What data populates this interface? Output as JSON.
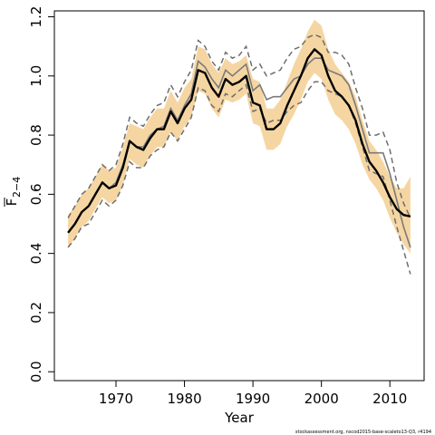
{
  "chart_data": {
    "type": "line",
    "xlabel": "Year",
    "ylabel_main": "F",
    "ylabel_sub": "2−4",
    "xlim": [
      1961,
      2015
    ],
    "ylim": [
      -0.03,
      1.22
    ],
    "x_ticks": [
      1970,
      1980,
      1990,
      2000,
      2010
    ],
    "x_tick_labels": [
      "1970",
      "1980",
      "1990",
      "2000",
      "2010"
    ],
    "y_ticks": [
      0.0,
      0.2,
      0.4,
      0.6,
      0.8,
      1.0,
      1.2
    ],
    "y_tick_labels": [
      "0.0",
      "0.2",
      "0.4",
      "0.6",
      "0.8",
      "1.0",
      "1.2"
    ],
    "footnote": "stockassessment.org, nscod2015-base-scaleto13-Q3, r4194",
    "colors": {
      "band": "#f5d6a2",
      "estimate": "#000000",
      "alternative": "#7a7a7a",
      "alt_bounds": "#6e6e6e"
    },
    "x": [
      1963,
      1964,
      1965,
      1966,
      1967,
      1968,
      1969,
      1970,
      1971,
      1972,
      1973,
      1974,
      1975,
      1976,
      1977,
      1978,
      1979,
      1980,
      1981,
      1982,
      1983,
      1984,
      1985,
      1986,
      1987,
      1988,
      1989,
      1990,
      1991,
      1992,
      1993,
      1994,
      1995,
      1996,
      1997,
      1998,
      1999,
      2000,
      2001,
      2002,
      2003,
      2004,
      2005,
      2006,
      2007,
      2008,
      2009,
      2010,
      2011,
      2012,
      2013
    ],
    "series": [
      {
        "name": "",
        "role": "estimate",
        "values": [
          0.47,
          0.5,
          0.54,
          0.56,
          0.6,
          0.64,
          0.62,
          0.63,
          0.69,
          0.78,
          0.76,
          0.75,
          0.79,
          0.82,
          0.82,
          0.88,
          0.84,
          0.89,
          0.92,
          1.02,
          1.01,
          0.96,
          0.93,
          0.99,
          0.97,
          0.98,
          1.0,
          0.91,
          0.9,
          0.82,
          0.82,
          0.84,
          0.9,
          0.95,
          1.0,
          1.06,
          1.09,
          1.07,
          1.0,
          0.95,
          0.93,
          0.9,
          0.85,
          0.77,
          0.71,
          0.68,
          0.64,
          0.59,
          0.55,
          0.53,
          0.525
        ]
      },
      {
        "name": "",
        "role": "band_upper",
        "values": [
          0.53,
          0.56,
          0.6,
          0.62,
          0.66,
          0.7,
          0.68,
          0.69,
          0.76,
          0.84,
          0.83,
          0.82,
          0.86,
          0.89,
          0.89,
          0.95,
          0.91,
          0.96,
          0.99,
          1.1,
          1.09,
          1.04,
          1.01,
          1.06,
          1.04,
          1.05,
          1.07,
          0.99,
          0.98,
          0.89,
          0.89,
          0.92,
          0.98,
          1.04,
          1.09,
          1.15,
          1.19,
          1.17,
          1.09,
          1.04,
          1.01,
          0.98,
          0.93,
          0.85,
          0.78,
          0.75,
          0.71,
          0.66,
          0.62,
          0.62,
          0.66
        ]
      },
      {
        "name": "",
        "role": "band_lower",
        "values": [
          0.42,
          0.45,
          0.49,
          0.51,
          0.55,
          0.59,
          0.57,
          0.58,
          0.63,
          0.72,
          0.7,
          0.69,
          0.73,
          0.76,
          0.76,
          0.81,
          0.78,
          0.83,
          0.86,
          0.95,
          0.94,
          0.89,
          0.86,
          0.92,
          0.91,
          0.92,
          0.94,
          0.84,
          0.83,
          0.75,
          0.75,
          0.77,
          0.83,
          0.87,
          0.92,
          0.98,
          1.01,
          0.99,
          0.92,
          0.87,
          0.85,
          0.82,
          0.77,
          0.7,
          0.65,
          0.62,
          0.58,
          0.52,
          0.47,
          0.43,
          0.4
        ]
      },
      {
        "name": "",
        "role": "alternative",
        "values": [
          0.47,
          0.5,
          0.54,
          0.56,
          0.6,
          0.64,
          0.62,
          0.64,
          0.7,
          0.78,
          0.76,
          0.76,
          0.8,
          0.82,
          0.83,
          0.89,
          0.85,
          0.9,
          0.94,
          1.05,
          1.03,
          0.99,
          0.96,
          1.02,
          1.0,
          1.02,
          1.04,
          0.95,
          0.97,
          0.92,
          0.93,
          0.93,
          0.96,
          0.99,
          1.0,
          1.04,
          1.06,
          1.06,
          1.02,
          1.01,
          1.0,
          0.97,
          0.9,
          0.82,
          0.74,
          0.74,
          0.74,
          0.67,
          0.58,
          0.49,
          0.42
        ]
      },
      {
        "name": "",
        "role": "alt_upper",
        "values": [
          0.52,
          0.56,
          0.6,
          0.62,
          0.66,
          0.7,
          0.68,
          0.7,
          0.77,
          0.86,
          0.84,
          0.83,
          0.87,
          0.9,
          0.91,
          0.97,
          0.93,
          0.98,
          1.02,
          1.12,
          1.1,
          1.05,
          1.02,
          1.08,
          1.06,
          1.07,
          1.1,
          1.02,
          1.04,
          1.0,
          1.01,
          1.02,
          1.06,
          1.09,
          1.1,
          1.13,
          1.14,
          1.13,
          1.08,
          1.08,
          1.07,
          1.04,
          0.96,
          0.89,
          0.8,
          0.8,
          0.81,
          0.75,
          0.64,
          0.57,
          0.52
        ]
      },
      {
        "name": "",
        "role": "alt_lower",
        "values": [
          0.42,
          0.45,
          0.49,
          0.5,
          0.54,
          0.58,
          0.56,
          0.58,
          0.63,
          0.71,
          0.69,
          0.69,
          0.73,
          0.75,
          0.76,
          0.81,
          0.78,
          0.82,
          0.86,
          0.96,
          0.95,
          0.9,
          0.88,
          0.94,
          0.93,
          0.95,
          0.97,
          0.88,
          0.89,
          0.84,
          0.85,
          0.85,
          0.88,
          0.9,
          0.91,
          0.95,
          0.98,
          0.98,
          0.95,
          0.94,
          0.93,
          0.9,
          0.84,
          0.76,
          0.68,
          0.67,
          0.66,
          0.58,
          0.49,
          0.41,
          0.33
        ]
      }
    ]
  }
}
